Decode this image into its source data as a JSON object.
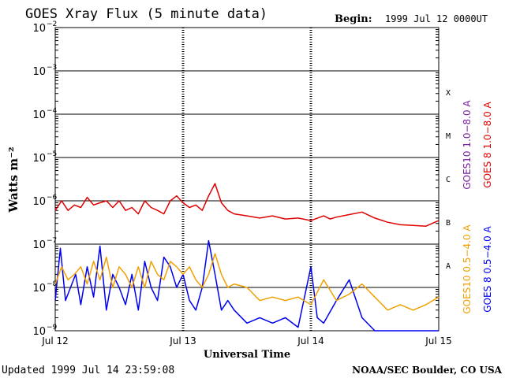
{
  "chart_data": {
    "type": "line",
    "title": "GOES Xray Flux (5 minute data)",
    "begin_label": "Begin:",
    "begin_value": "1999 Jul 12 0000UT",
    "xlabel": "Universal Time",
    "ylabel": "Watts m⁻²",
    "yscale": "log",
    "ylim": [
      1e-09,
      0.01
    ],
    "y_ticks": [
      {
        "value": 0.01,
        "base": "10",
        "exp": "−2"
      },
      {
        "value": 0.001,
        "base": "10",
        "exp": "−3"
      },
      {
        "value": 0.0001,
        "base": "10",
        "exp": "−4"
      },
      {
        "value": 1e-05,
        "base": "10",
        "exp": "−5"
      },
      {
        "value": 1e-06,
        "base": "10",
        "exp": "−6"
      },
      {
        "value": 1e-07,
        "base": "10",
        "exp": "−7"
      },
      {
        "value": 1e-08,
        "base": "10",
        "exp": "−8"
      },
      {
        "value": 1e-09,
        "base": "10",
        "exp": "−9"
      }
    ],
    "x_ticks": [
      {
        "day": 0,
        "label": "Jul 12"
      },
      {
        "day": 1,
        "label": "Jul 13"
      },
      {
        "day": 2,
        "label": "Jul 14"
      },
      {
        "day": 3,
        "label": "Jul 15"
      }
    ],
    "xlim": [
      0,
      3
    ],
    "flare_classes": [
      {
        "label": "X",
        "value": 0.00032
      },
      {
        "label": "M",
        "value": 3.2e-05
      },
      {
        "label": "C",
        "value": 3.2e-06
      },
      {
        "label": "B",
        "value": 3.2e-07
      },
      {
        "label": "A",
        "value": 3.2e-08
      }
    ],
    "grid": true,
    "legend": [
      {
        "text": "GOES10 1.0−8.0 A",
        "color": "#7a1fa0"
      },
      {
        "text": "GOES 8 1.0−8.0 A",
        "color": "#e00000"
      },
      {
        "text": "GOES10 0.5−4.0 A",
        "color": "#f0a000"
      },
      {
        "text": "GOES 8 0.5−4.0 A",
        "color": "#0000ee"
      }
    ],
    "series": [
      {
        "name": "GOES 8 1.0−8.0 A",
        "color": "#e00000",
        "x": [
          0,
          0.05,
          0.1,
          0.15,
          0.2,
          0.25,
          0.3,
          0.35,
          0.4,
          0.45,
          0.5,
          0.55,
          0.6,
          0.65,
          0.7,
          0.75,
          0.8,
          0.85,
          0.9,
          0.95,
          1.0,
          1.05,
          1.1,
          1.15,
          1.2,
          1.25,
          1.3,
          1.35,
          1.4,
          1.5,
          1.6,
          1.7,
          1.8,
          1.9,
          2.0,
          2.1,
          2.15,
          2.2,
          2.3,
          2.4,
          2.5,
          2.6,
          2.7,
          2.8,
          2.9,
          3.0
        ],
        "y": [
          6e-07,
          1e-06,
          6e-07,
          8e-07,
          7e-07,
          1.2e-06,
          8e-07,
          9e-07,
          1e-06,
          7e-07,
          1e-06,
          6e-07,
          7e-07,
          5e-07,
          1e-06,
          7e-07,
          6e-07,
          5e-07,
          1e-06,
          1.3e-06,
          9e-07,
          7e-07,
          8e-07,
          6e-07,
          1.3e-06,
          2.5e-06,
          9e-07,
          6e-07,
          5e-07,
          4.5e-07,
          4e-07,
          4.5e-07,
          3.8e-07,
          4e-07,
          3.5e-07,
          4.5e-07,
          3.8e-07,
          4.2e-07,
          4.8e-07,
          5.5e-07,
          4e-07,
          3.2e-07,
          2.8e-07,
          2.7e-07,
          2.6e-07,
          3.5e-07
        ]
      },
      {
        "name": "GOES 8 0.5−4.0 A",
        "color": "#0000ee",
        "x": [
          0,
          0.04,
          0.08,
          0.12,
          0.16,
          0.2,
          0.25,
          0.3,
          0.35,
          0.4,
          0.45,
          0.5,
          0.55,
          0.6,
          0.65,
          0.7,
          0.75,
          0.8,
          0.85,
          0.9,
          0.95,
          1.0,
          1.05,
          1.1,
          1.15,
          1.2,
          1.25,
          1.3,
          1.35,
          1.4,
          1.5,
          1.6,
          1.7,
          1.8,
          1.9,
          2.0,
          2.05,
          2.1,
          2.2,
          2.3,
          2.4,
          2.5,
          2.6,
          2.7,
          2.8,
          2.9,
          3.0
        ],
        "y": [
          5e-09,
          8e-08,
          5e-09,
          1e-08,
          2e-08,
          4e-09,
          3e-08,
          6e-09,
          9e-08,
          3e-09,
          2e-08,
          1e-08,
          4e-09,
          2e-08,
          3e-09,
          4e-08,
          1e-08,
          5e-09,
          5e-08,
          3e-08,
          1e-08,
          2e-08,
          5e-09,
          3e-09,
          1e-08,
          1.2e-07,
          2e-08,
          3e-09,
          5e-09,
          3e-09,
          1.5e-09,
          2e-09,
          1.5e-09,
          2e-09,
          1.2e-09,
          3e-08,
          2e-09,
          1.5e-09,
          5e-09,
          1.5e-08,
          2e-09,
          1e-09,
          1e-09,
          1e-09,
          1e-09,
          1e-09,
          1e-09
        ]
      },
      {
        "name": "GOES10 0.5−4.0 A",
        "color": "#f0a000",
        "x": [
          0,
          0.05,
          0.1,
          0.15,
          0.2,
          0.25,
          0.3,
          0.35,
          0.4,
          0.45,
          0.5,
          0.55,
          0.6,
          0.65,
          0.7,
          0.75,
          0.8,
          0.85,
          0.9,
          0.95,
          1.0,
          1.05,
          1.1,
          1.15,
          1.2,
          1.25,
          1.3,
          1.35,
          1.4,
          1.5,
          1.6,
          1.7,
          1.8,
          1.9,
          2.0,
          2.1,
          2.2,
          2.3,
          2.4,
          2.5,
          2.6,
          2.7,
          2.8,
          2.9,
          3.0
        ],
        "y": [
          1.2e-08,
          3e-08,
          1.5e-08,
          2e-08,
          3e-08,
          1.2e-08,
          4e-08,
          1.5e-08,
          5e-08,
          1e-08,
          3e-08,
          2e-08,
          1e-08,
          3e-08,
          1e-08,
          4e-08,
          2e-08,
          1.5e-08,
          4e-08,
          3e-08,
          2e-08,
          3e-08,
          1.5e-08,
          1e-08,
          2e-08,
          6e-08,
          2e-08,
          1e-08,
          1.2e-08,
          1e-08,
          5e-09,
          6e-09,
          5e-09,
          6e-09,
          4e-09,
          1.5e-08,
          5e-09,
          7e-09,
          1.2e-08,
          6e-09,
          3e-09,
          4e-09,
          3e-09,
          4e-09,
          6e-09
        ]
      }
    ]
  },
  "footer": {
    "updated": "Updated 1999 Jul 14 23:59:08",
    "source": "NOAA/SEC Boulder, CO USA"
  }
}
